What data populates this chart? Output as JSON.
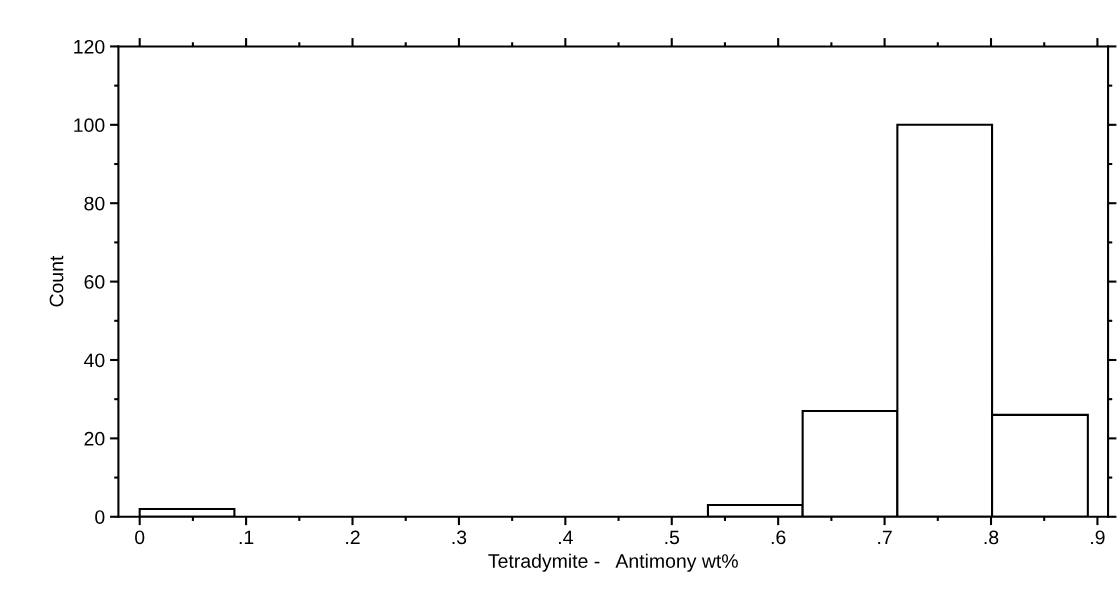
{
  "chart_data": {
    "type": "histogram",
    "xlabel": "Tetradymite -   Antimony wt%",
    "ylabel": "Count",
    "bins": [
      0,
      0.089,
      0.534,
      0.623,
      0.712,
      0.801,
      0.891
    ],
    "values": [
      2,
      null,
      3,
      27,
      100,
      26
    ],
    "color": "#ffffff",
    "xlim": [
      -0.02,
      0.91
    ],
    "ylim": [
      0,
      120
    ],
    "xticks": [
      0,
      {
        "value": 0.1,
        "label": ".1"
      },
      {
        "value": 0.2,
        "label": ".2"
      },
      {
        "value": 0.3,
        "label": ".3"
      },
      {
        "value": 0.4,
        "label": ".4"
      },
      {
        "value": 0.5,
        "label": ".5"
      },
      {
        "value": 0.6,
        "label": ".6"
      },
      {
        "value": 0.7,
        "label": ".7"
      },
      {
        "value": 0.8,
        "label": ".8"
      },
      {
        "value": 0.9,
        "label": ".9"
      }
    ],
    "yticks": [
      0,
      20,
      40,
      60,
      80,
      100,
      120
    ],
    "grid": false
  }
}
